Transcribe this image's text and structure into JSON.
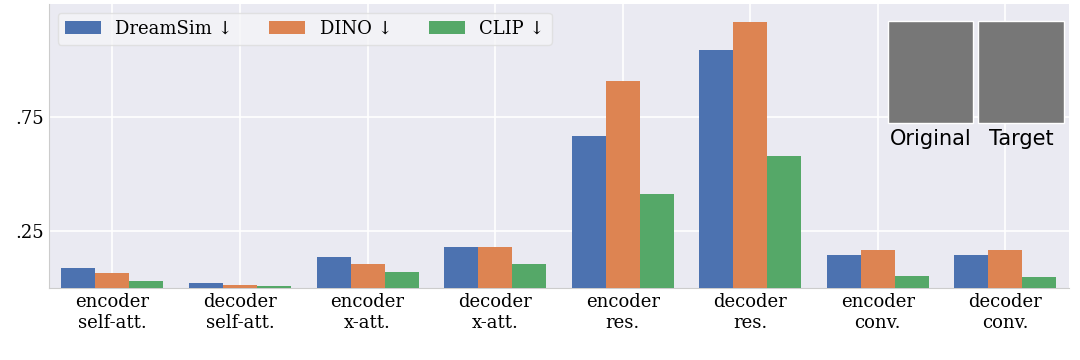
{
  "chart_data": {
    "type": "bar",
    "categories": [
      "encoder\nself-att.",
      "decoder\nself-att.",
      "encoder\nx-att.",
      "decoder\nx-att.",
      "encoder\nres.",
      "decoder\nres.",
      "encoder\nconv.",
      "decoder\nconv."
    ],
    "series": [
      {
        "name": "DreamSim ↓",
        "color": "#4c72b0",
        "values": [
          0.088,
          0.02,
          0.136,
          0.18,
          0.667,
          1.048,
          0.145,
          0.145
        ]
      },
      {
        "name": "DINO ↓",
        "color": "#dd8452",
        "values": [
          0.066,
          0.015,
          0.105,
          0.18,
          0.908,
          1.171,
          0.167,
          0.167
        ]
      },
      {
        "name": "CLIP ↓",
        "color": "#55a868",
        "values": [
          0.031,
          0.008,
          0.07,
          0.105,
          0.412,
          0.579,
          0.053,
          0.048
        ]
      }
    ],
    "ylim": [
      0,
      1.25
    ],
    "yticks": [
      {
        "value": 0.25,
        "label": ".25"
      },
      {
        "value": 0.75,
        "label": ".75"
      }
    ],
    "grid": true,
    "legend": "upper left",
    "annotations": [
      "Original",
      "Target"
    ]
  }
}
